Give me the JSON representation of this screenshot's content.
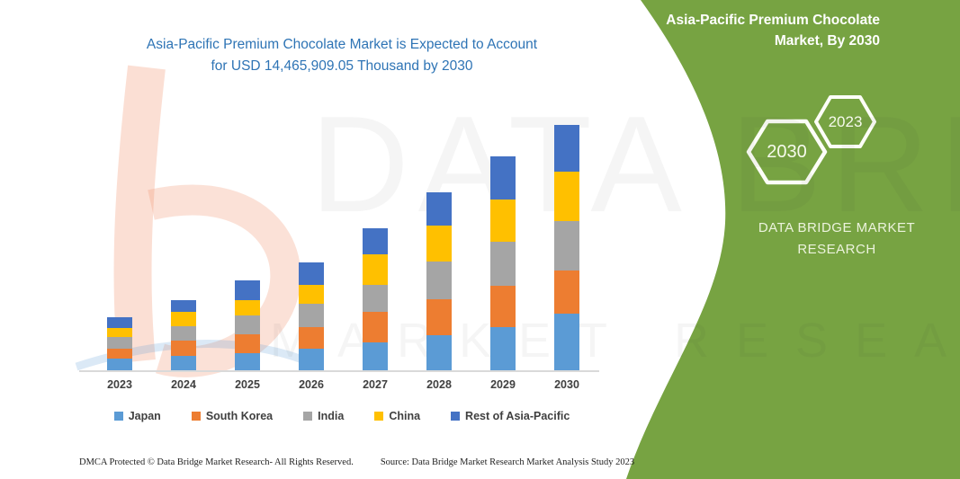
{
  "page": {
    "background": "#FFFFFF"
  },
  "header": {
    "title_line1": "Asia-Pacific Premium Chocolate Market is Expected to Account",
    "title_line2": "for USD 14,465,909.05 Thousand by 2030",
    "title_color": "#2E74B5"
  },
  "side_panel": {
    "bg_color": "#77A342",
    "title_line1": "Asia-Pacific Premium Chocolate",
    "title_line2": "Market, By 2030",
    "hexagons": [
      {
        "label": "2030"
      },
      {
        "label": "2023"
      }
    ],
    "brand_line1": "DATA BRIDGE MARKET",
    "brand_line2": "RESEARCH"
  },
  "watermark": {
    "line1": "DATA BRIDGE",
    "line2": "MARKET RESEARCH"
  },
  "chart_data": {
    "type": "bar",
    "stacked": true,
    "title": "Asia-Pacific Premium Chocolate Market is Expected to Account for USD 14,465,909.05 Thousand by 2030",
    "xlabel": "",
    "ylabel": "",
    "value_axis": "none (no y-axis, gridlines or data labels shown)",
    "unit_note": "values are estimated relative segment heights in screen pixels; only stated figure is USD 14,465,909.05 Thousand total by 2030",
    "grid": false,
    "legend_position": "bottom",
    "categories": [
      "2023",
      "2024",
      "2025",
      "2026",
      "2027",
      "2028",
      "2029",
      "2030"
    ],
    "series": [
      {
        "name": "Japan",
        "color": "#5B9BD5",
        "values": [
          13,
          16,
          19,
          24,
          31,
          39,
          48,
          63
        ]
      },
      {
        "name": "South Korea",
        "color": "#ED7D31",
        "values": [
          11,
          17,
          21,
          24,
          34,
          40,
          46,
          48
        ]
      },
      {
        "name": "India",
        "color": "#A5A5A5",
        "values": [
          13,
          16,
          21,
          26,
          30,
          42,
          49,
          55
        ]
      },
      {
        "name": "China",
        "color": "#FFC000",
        "values": [
          10,
          16,
          17,
          21,
          34,
          40,
          47,
          55
        ]
      },
      {
        "name": "Rest of Asia-Pacific",
        "color": "#4472C4",
        "values": [
          12,
          13,
          22,
          25,
          29,
          37,
          48,
          52
        ]
      }
    ],
    "totals_relative": [
      59,
      78,
      100,
      120,
      158,
      198,
      238,
      273
    ]
  },
  "footer": {
    "left": "DMCA Protected © Data Bridge Market Research-  All Rights Reserved.",
    "right": "Source: Data Bridge Market Research  Market Analysis Study 2023"
  }
}
